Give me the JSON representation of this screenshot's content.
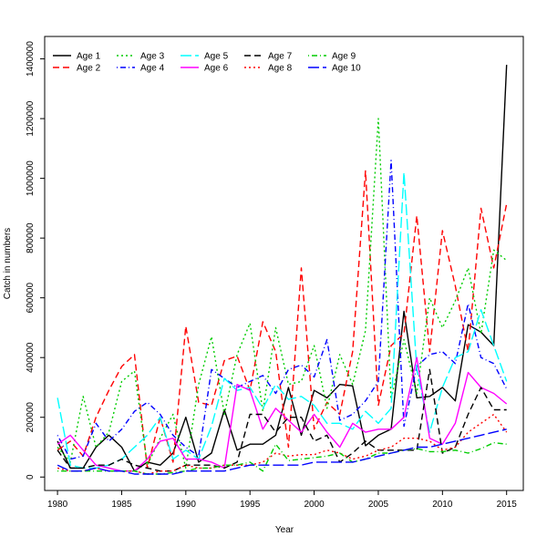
{
  "chart_data": {
    "type": "line",
    "title": "",
    "xlabel": "Year",
    "ylabel": "Catch in numbers",
    "xlim": [
      1979,
      2016.3
    ],
    "ylim": [
      -45000,
      1475000
    ],
    "xticks": [
      1980,
      1985,
      1990,
      1995,
      2000,
      2005,
      2010,
      2015
    ],
    "yticks": [
      0,
      200000,
      400000,
      600000,
      800000,
      1000000,
      1200000,
      1400000
    ],
    "grid": false,
    "legend_position": "top-left",
    "x": [
      1980,
      1981,
      1982,
      1983,
      1984,
      1985,
      1986,
      1987,
      1988,
      1989,
      1990,
      1991,
      1992,
      1993,
      1994,
      1995,
      1996,
      1997,
      1998,
      1999,
      2000,
      2001,
      2002,
      2003,
      2004,
      2005,
      2006,
      2007,
      2008,
      2009,
      2010,
      2011,
      2012,
      2013,
      2014,
      2015
    ],
    "series": [
      {
        "name": "Age 1",
        "color": "#000000",
        "dash": "solid",
        "values": [
          120000,
          30000,
          30000,
          100000,
          140000,
          100000,
          20000,
          50000,
          40000,
          80000,
          200000,
          50000,
          80000,
          225000,
          90000,
          110000,
          110000,
          140000,
          300000,
          140000,
          290000,
          265000,
          310000,
          305000,
          105000,
          140000,
          160000,
          555000,
          265000,
          270000,
          300000,
          255000,
          510000,
          485000,
          440000,
          1380000
        ]
      },
      {
        "name": "Age 2",
        "color": "#ff0000",
        "dash": "dashed",
        "values": [
          90000,
          120000,
          70000,
          200000,
          290000,
          370000,
          410000,
          30000,
          200000,
          50000,
          505000,
          250000,
          240000,
          390000,
          405000,
          290000,
          520000,
          420000,
          100000,
          700000,
          160000,
          250000,
          210000,
          420000,
          1025000,
          240000,
          440000,
          480000,
          875000,
          420000,
          825000,
          640000,
          420000,
          900000,
          700000,
          915000
        ]
      },
      {
        "name": "Age 3",
        "color": "#00cc00",
        "dash": "dotted",
        "values": [
          100000,
          50000,
          270000,
          100000,
          150000,
          320000,
          355000,
          40000,
          130000,
          210000,
          30000,
          310000,
          470000,
          210000,
          410000,
          515000,
          220000,
          500000,
          310000,
          320000,
          440000,
          230000,
          410000,
          310000,
          490000,
          1200000,
          260000,
          460000,
          280000,
          600000,
          500000,
          590000,
          700000,
          480000,
          760000,
          725000
        ]
      },
      {
        "name": "Age 4",
        "color": "#0000ff",
        "dash": "dashdot",
        "values": [
          140000,
          60000,
          70000,
          180000,
          120000,
          160000,
          220000,
          250000,
          210000,
          140000,
          100000,
          70000,
          360000,
          330000,
          300000,
          320000,
          340000,
          280000,
          360000,
          375000,
          335000,
          460000,
          190000,
          210000,
          255000,
          320000,
          1060000,
          170000,
          370000,
          410000,
          420000,
          380000,
          580000,
          400000,
          380000,
          295000
        ]
      },
      {
        "name": "Age 5",
        "color": "#00ffff",
        "dash": "longdash",
        "values": [
          265000,
          40000,
          30000,
          30000,
          40000,
          60000,
          100000,
          140000,
          200000,
          60000,
          90000,
          60000,
          170000,
          330000,
          290000,
          300000,
          230000,
          310000,
          260000,
          270000,
          240000,
          180000,
          180000,
          160000,
          220000,
          180000,
          230000,
          1020000,
          360000,
          150000,
          300000,
          400000,
          420000,
          560000,
          440000,
          320000
        ]
      },
      {
        "name": "Age 6",
        "color": "#ff00ff",
        "dash": "solid",
        "values": [
          110000,
          140000,
          90000,
          40000,
          30000,
          20000,
          20000,
          60000,
          120000,
          130000,
          60000,
          60000,
          50000,
          30000,
          310000,
          290000,
          160000,
          230000,
          190000,
          150000,
          210000,
          150000,
          100000,
          180000,
          150000,
          160000,
          160000,
          200000,
          400000,
          130000,
          110000,
          180000,
          350000,
          300000,
          280000,
          245000
        ]
      },
      {
        "name": "Age 7",
        "color": "#000000",
        "dash": "dashed",
        "values": [
          90000,
          30000,
          30000,
          40000,
          40000,
          60000,
          40000,
          30000,
          20000,
          20000,
          40000,
          40000,
          40000,
          30000,
          50000,
          210000,
          210000,
          150000,
          200000,
          200000,
          120000,
          140000,
          50000,
          80000,
          120000,
          90000,
          90000,
          90000,
          90000,
          360000,
          80000,
          100000,
          210000,
          300000,
          225000,
          225000
        ]
      },
      {
        "name": "Age 8",
        "color": "#ff0000",
        "dash": "dotted",
        "values": [
          30000,
          20000,
          20000,
          30000,
          20000,
          20000,
          20000,
          10000,
          20000,
          20000,
          40000,
          30000,
          30000,
          40000,
          40000,
          40000,
          50000,
          80000,
          70000,
          75000,
          75000,
          90000,
          80000,
          60000,
          70000,
          90000,
          100000,
          130000,
          130000,
          120000,
          90000,
          100000,
          150000,
          180000,
          210000,
          150000
        ]
      },
      {
        "name": "Age 9",
        "color": "#00cc00",
        "dash": "dashdot",
        "values": [
          20000,
          20000,
          20000,
          20000,
          20000,
          20000,
          20000,
          10000,
          10000,
          15000,
          20000,
          30000,
          30000,
          40000,
          40000,
          50000,
          20000,
          110000,
          55000,
          60000,
          65000,
          70000,
          80000,
          50000,
          60000,
          80000,
          80000,
          90000,
          95000,
          85000,
          85000,
          90000,
          80000,
          95000,
          115000,
          110000
        ]
      },
      {
        "name": "Age 10",
        "color": "#0000ff",
        "dash": "longdash",
        "values": [
          40000,
          20000,
          20000,
          30000,
          20000,
          20000,
          10000,
          10000,
          10000,
          10000,
          20000,
          20000,
          20000,
          20000,
          30000,
          40000,
          40000,
          40000,
          40000,
          40000,
          50000,
          50000,
          50000,
          50000,
          60000,
          70000,
          80000,
          90000,
          100000,
          100000,
          110000,
          120000,
          130000,
          140000,
          150000,
          160000
        ]
      }
    ]
  }
}
